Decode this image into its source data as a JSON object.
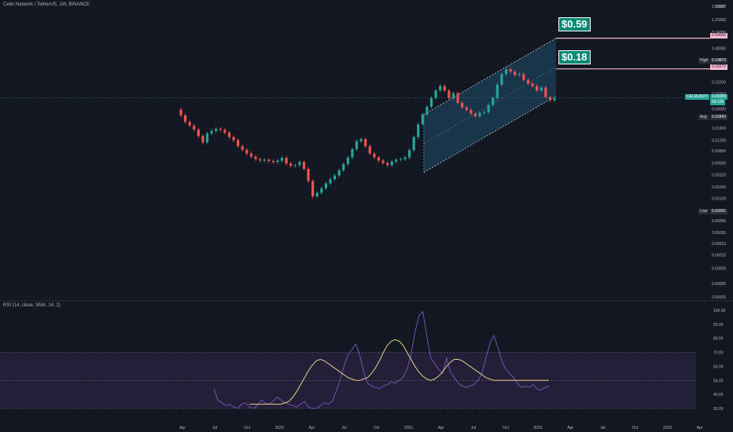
{
  "title": "Celer Network / TetherUS, 1W, BINANCE",
  "rsi_title": "RSI (14, close, SMA, 14, 2)",
  "callouts": {
    "upper": "$0.59",
    "lower": "$0.18"
  },
  "price_tags": {
    "upper_line": "0.59059",
    "lower_line": "0.18272",
    "high_label": "High",
    "high_value": "0.19870",
    "symbol": "CELRUSDT",
    "last_value": "0.06009",
    "countdown": "5d 10h",
    "avg_label": "Avg",
    "avg_value": "0.02843",
    "low_label": "Low",
    "low_value": "0.00091"
  },
  "colors": {
    "background": "#131722",
    "up": "#26a69a",
    "down": "#ef5350",
    "channel_fill": "#1f4e6b",
    "rsi_line": "#7e57c2",
    "rsi_ma": "#e8d28a",
    "rsi_band": "#2a2340",
    "target_line": "#f8bbd0",
    "callout": "#0a8a74"
  },
  "chart_data": [
    {
      "type": "candlestick",
      "title": "Celer Network / TetherUS, 1W, BINANCE",
      "y_scale": "log",
      "ylabel": "USDT",
      "y_ticks": [
        "2.00000",
        "1.20000",
        "0.74000",
        "0.40000",
        "0.24000",
        "0.11000",
        "0.07000",
        "0.04000",
        "0.01900",
        "0.01200",
        "0.00800",
        "0.00500",
        "0.00320",
        "0.00200",
        "0.00130",
        "0.00055",
        "0.00035",
        "0.00023",
        "0.00015",
        "0.00009",
        "0.00005",
        "0.00003"
      ],
      "x_ticks": [
        "Apr",
        "Jul",
        "Oct",
        "2020",
        "Apr",
        "Jul",
        "Oct",
        "2021",
        "Apr",
        "Jul",
        "Oct",
        "2022",
        "Apr",
        "Jul",
        "Oct",
        "2023",
        "Apr"
      ],
      "series": [
        {
          "name": "close",
          "values": [
            0.031,
            0.024,
            0.021,
            0.018,
            0.014,
            0.011,
            0.0155,
            0.017,
            0.0185,
            0.0178,
            0.016,
            0.0135,
            0.012,
            0.0095,
            0.0083,
            0.0072,
            0.0064,
            0.0058,
            0.0055,
            0.0057,
            0.0054,
            0.0052,
            0.0055,
            0.0061,
            0.0049,
            0.0045,
            0.0046,
            0.0052,
            0.004,
            0.0025,
            0.0014,
            0.0016,
            0.0019,
            0.0023,
            0.0027,
            0.0031,
            0.0038,
            0.0048,
            0.0062,
            0.0085,
            0.0115,
            0.0125,
            0.0095,
            0.0072,
            0.0062,
            0.0055,
            0.005,
            0.0046,
            0.0053,
            0.0057,
            0.0058,
            0.0062,
            0.0082,
            0.0135,
            0.022,
            0.032,
            0.043,
            0.06,
            0.08,
            0.095,
            0.08,
            0.06,
            0.072,
            0.05,
            0.042,
            0.038,
            0.033,
            0.03,
            0.034,
            0.035,
            0.046,
            0.06,
            0.1,
            0.15,
            0.18,
            0.165,
            0.145,
            0.15,
            0.12,
            0.105,
            0.095,
            0.08,
            0.09,
            0.062,
            0.055,
            0.06
          ]
        },
        {
          "name": "upper_target",
          "values": [
            0.59059
          ]
        },
        {
          "name": "lower_target",
          "values": [
            0.18272
          ]
        }
      ],
      "stats": {
        "high": 0.1987,
        "last": 0.06009,
        "avg": 0.02843,
        "low": 0.00091
      },
      "upper_target": 0.59059,
      "lower_target": 0.18272
    },
    {
      "type": "line",
      "title": "RSI (14, close, SMA, 14, 2)",
      "ylim": [
        30,
        100
      ],
      "y_ticks": [
        "100.00",
        "90.00",
        "80.00",
        "70.00",
        "60.00",
        "50.00",
        "40.00",
        "30.00"
      ],
      "band": [
        30,
        70
      ],
      "series": [
        {
          "name": "RSI",
          "values": [
            44,
            36,
            34,
            32,
            33,
            31,
            30,
            33,
            34,
            31,
            30,
            32,
            36,
            34,
            33,
            35,
            38,
            36,
            34,
            33,
            32,
            31,
            33,
            35,
            31,
            30,
            30,
            32,
            34,
            33,
            35,
            42,
            50,
            60,
            68,
            72,
            76,
            68,
            56,
            48,
            46,
            45,
            44,
            46,
            47,
            49,
            48,
            50,
            52,
            58,
            68,
            84,
            96,
            99,
            82,
            66,
            62,
            58,
            55,
            66,
            56,
            52,
            48,
            46,
            45,
            46,
            47,
            50,
            55,
            66,
            76,
            82,
            74,
            64,
            58,
            55,
            52,
            48,
            45,
            46,
            45,
            47,
            44,
            43,
            45,
            46
          ]
        },
        {
          "name": "SMA",
          "values": [
            33,
            33,
            32,
            32,
            32,
            32,
            32,
            33,
            33,
            33,
            33,
            33,
            33,
            33,
            33,
            33,
            33,
            33,
            34,
            35,
            38,
            42,
            47,
            52,
            57,
            61,
            64,
            65,
            64,
            62,
            60,
            58,
            56,
            54,
            52,
            51,
            50,
            50,
            51,
            52,
            55,
            59,
            64,
            70,
            75,
            78,
            79,
            78,
            75,
            70,
            65,
            60,
            56,
            53,
            51,
            50,
            51,
            53,
            56,
            60,
            63,
            65,
            65,
            64,
            62,
            60,
            58,
            56,
            54,
            52,
            51,
            50,
            50,
            50,
            50,
            50,
            50,
            50,
            50,
            50,
            50,
            50,
            50,
            50,
            50,
            50
          ]
        }
      ]
    }
  ]
}
